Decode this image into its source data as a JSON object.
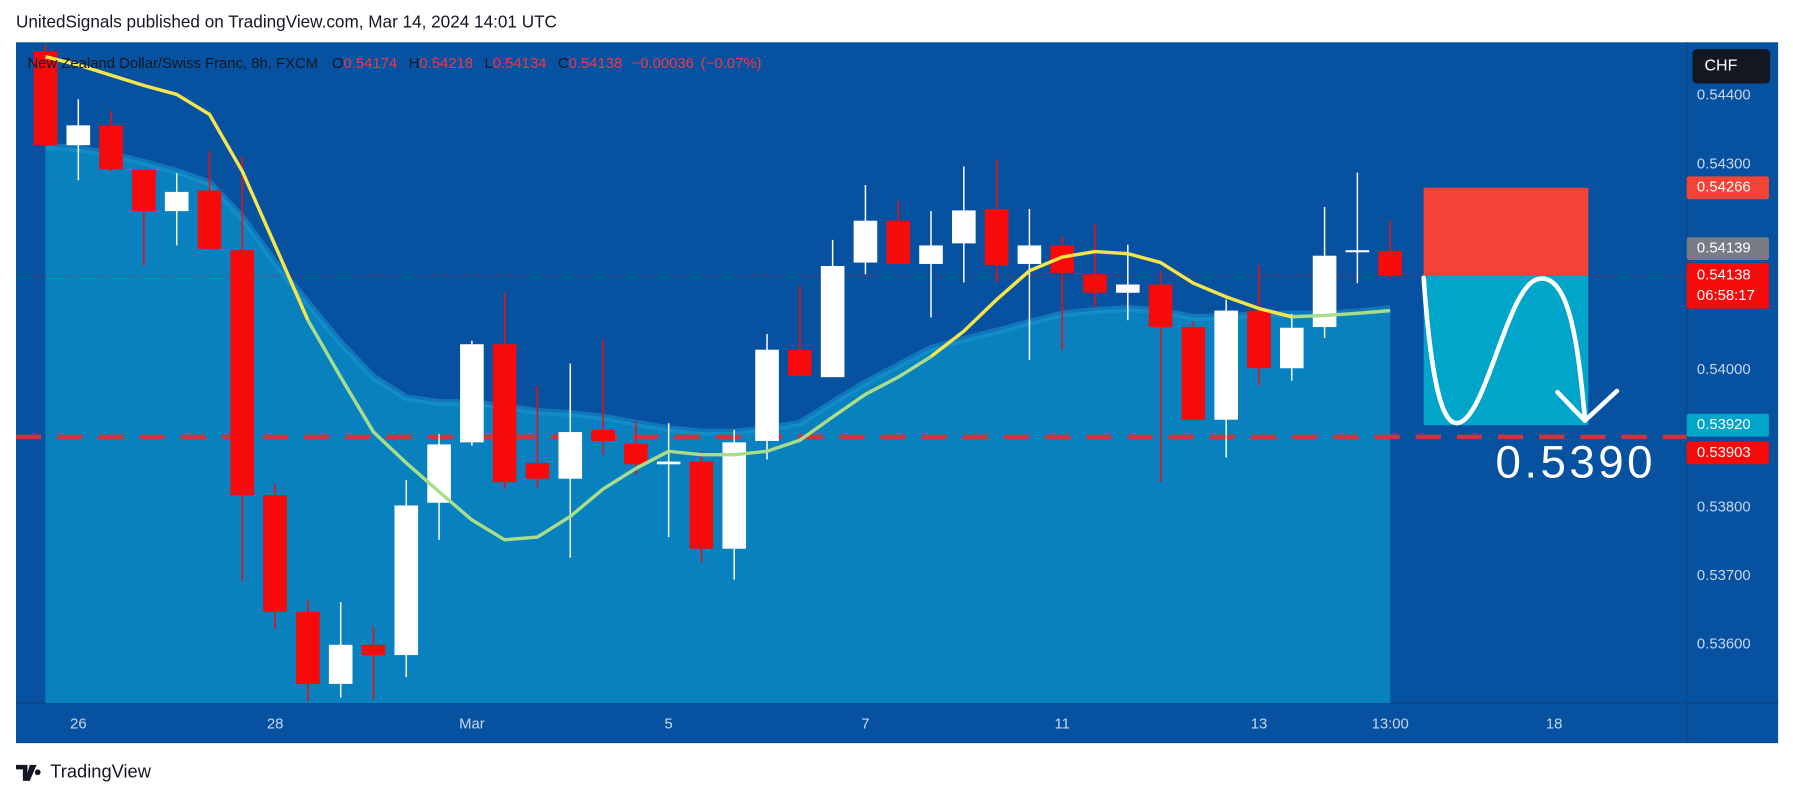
{
  "header": {
    "title": "UnitedSignals published on TradingView.com, Mar 14, 2024 14:01 UTC"
  },
  "chart_data": {
    "type": "candlestick",
    "title": "New Zealand Dollar/Swiss Franc, 8h, FXCM",
    "ohlc_letters": [
      "O",
      "H",
      "L",
      "C"
    ],
    "change": "−0.00036",
    "change_pct": "(−0.07%)",
    "currency": "CHF",
    "open": [
      0.54465,
      0.54328,
      0.54357,
      0.54292,
      0.54232,
      0.54262,
      0.54175,
      0.53818,
      0.53648,
      0.53543,
      0.536,
      0.53585,
      0.53807,
      0.53895,
      0.54038,
      0.53865,
      0.53842,
      0.53913,
      0.53893,
      0.53863,
      0.53867,
      0.5374,
      0.53897,
      0.5403,
      0.5399,
      0.54157,
      0.54218,
      0.54155,
      0.54185,
      0.54235,
      0.54155,
      0.54182,
      0.5414,
      0.54113,
      0.54125,
      0.54063,
      0.53928,
      0.54087,
      0.54003,
      0.54063,
      0.54172,
      0.54174
    ],
    "high": [
      0.54475,
      0.54395,
      0.54378,
      0.54292,
      0.54287,
      0.5432,
      0.54312,
      0.53835,
      0.53665,
      0.53662,
      0.53627,
      0.5384,
      0.53907,
      0.54043,
      0.54113,
      0.53977,
      0.5401,
      0.54045,
      0.53925,
      0.53923,
      0.53882,
      0.53913,
      0.54053,
      0.54123,
      0.5419,
      0.5427,
      0.54247,
      0.54232,
      0.54297,
      0.54307,
      0.54235,
      0.54195,
      0.54213,
      0.54183,
      0.54145,
      0.5407,
      0.54103,
      0.54153,
      0.54082,
      0.54238,
      0.54288,
      0.54218
    ],
    "low": [
      0.54325,
      0.54277,
      0.5429,
      0.54152,
      0.54182,
      0.54177,
      0.53693,
      0.53623,
      0.53518,
      0.53523,
      0.5352,
      0.53553,
      0.53753,
      0.5389,
      0.53827,
      0.53828,
      0.53727,
      0.53877,
      0.53848,
      0.53757,
      0.5372,
      0.53695,
      0.5387,
      0.53992,
      0.5399,
      0.5414,
      0.54155,
      0.54077,
      0.54128,
      0.54128,
      0.54015,
      0.5403,
      0.54093,
      0.54073,
      0.53837,
      0.53928,
      0.53873,
      0.53978,
      0.53985,
      0.54047,
      0.54127,
      0.54134
    ],
    "close": [
      0.54328,
      0.54357,
      0.54293,
      0.54232,
      0.5426,
      0.54177,
      0.53818,
      0.53648,
      0.53543,
      0.536,
      0.53585,
      0.53803,
      0.53892,
      0.54038,
      0.53837,
      0.53842,
      0.5391,
      0.53897,
      0.53863,
      0.53867,
      0.5374,
      0.53895,
      0.5403,
      0.53992,
      0.54152,
      0.54218,
      0.54155,
      0.54182,
      0.54233,
      0.54153,
      0.54182,
      0.54142,
      0.54113,
      0.54125,
      0.54063,
      0.53928,
      0.54087,
      0.54003,
      0.54062,
      0.54167,
      0.54175,
      0.54138
    ],
    "up_color": "#ffffff",
    "down_color": "#f70a0a",
    "lines": [
      {
        "color": "#f7e64a",
        "values": [
          0.54457,
          0.54445,
          0.5443,
          0.54415,
          0.54402,
          0.54373,
          0.5429,
          0.54182,
          0.54073,
          null,
          null,
          null,
          null,
          null,
          null,
          null,
          null,
          null,
          null,
          null,
          null,
          null,
          null,
          null,
          null,
          null,
          null,
          0.5402,
          0.54057,
          0.54103,
          0.54145,
          0.54165,
          0.54173,
          0.5417,
          0.54157,
          0.54127,
          0.54107,
          0.5409,
          0.54078,
          null,
          null,
          null
        ]
      },
      {
        "color": "#a8dd8a",
        "values": [
          null,
          null,
          null,
          null,
          null,
          null,
          null,
          null,
          0.54073,
          0.5399,
          0.5391,
          0.53865,
          0.53823,
          0.53782,
          0.53753,
          0.53757,
          0.53787,
          0.53827,
          0.53857,
          0.53882,
          0.53877,
          0.53877,
          0.53882,
          0.53898,
          0.53932,
          0.53965,
          0.5399,
          0.5402,
          null,
          null,
          null,
          null,
          null,
          null,
          null,
          null,
          null,
          null,
          0.54078,
          0.5408,
          0.54083,
          0.54087
        ]
      }
    ],
    "area": {
      "color": "#0a86c2",
      "values": [
        0.54327,
        0.54323,
        0.54315,
        0.54303,
        0.5429,
        0.54273,
        0.54223,
        0.54157,
        0.54098,
        0.5404,
        0.5399,
        0.5396,
        0.53953,
        0.53953,
        0.53947,
        0.5394,
        0.53937,
        0.53932,
        0.53923,
        0.53915,
        0.5391,
        0.5391,
        0.53915,
        0.53923,
        0.53953,
        0.53982,
        0.54007,
        0.54032,
        0.54045,
        0.54057,
        0.5407,
        0.54082,
        0.54087,
        0.5409,
        0.54087,
        0.54077,
        0.54078,
        0.54082,
        0.54082,
        0.54082,
        0.54085,
        0.5409
      ]
    },
    "xlim": [
      -0.9,
      50.04
    ],
    "xticks": [
      {
        "value": 1,
        "label": "26"
      },
      {
        "value": 7,
        "label": "28"
      },
      {
        "value": 13,
        "label": "Mar"
      },
      {
        "value": 19,
        "label": "5"
      },
      {
        "value": 25,
        "label": "7"
      },
      {
        "value": 31,
        "label": "11"
      },
      {
        "value": 37,
        "label": "13"
      },
      {
        "value": 41,
        "label": "13:00"
      },
      {
        "value": 46,
        "label": "18"
      }
    ],
    "ylim": [
      0.53515,
      0.54478
    ],
    "yticks": [
      {
        "value": 0.544,
        "label": "0.54400"
      },
      {
        "value": 0.543,
        "label": "0.54300"
      },
      {
        "value": 0.54,
        "label": "0.54000"
      },
      {
        "value": 0.538,
        "label": "0.53800"
      },
      {
        "value": 0.537,
        "label": "0.53700"
      },
      {
        "value": 0.536,
        "label": "0.53600"
      }
    ],
    "position": {
      "stop": 0.54266,
      "target": {
        "value": 0.5392,
        "label": "0.53920"
      },
      "stop_color": "#f44336",
      "target_color": "#00a6c9"
    },
    "level": {
      "value": 0.53903,
      "color": "#d0343a"
    },
    "ask": 0.54139,
    "countdown": "06:58:17",
    "annotation": "0.5390"
  },
  "footer": {
    "brand": "TradingView"
  }
}
